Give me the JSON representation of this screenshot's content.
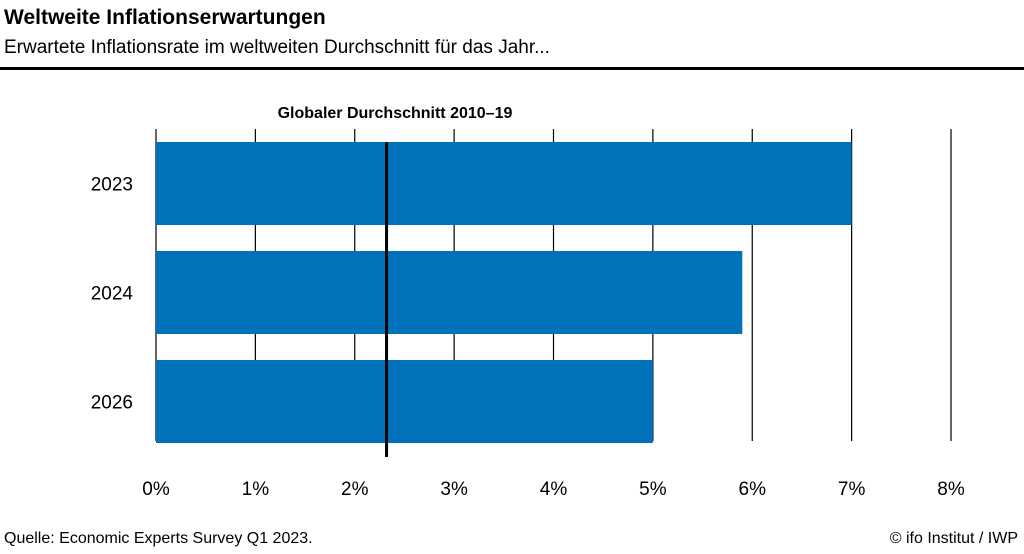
{
  "header": {
    "title": "Weltweite Inflationserwartungen",
    "subtitle": "Erwartete Inflationsrate im weltweiten Durchschnitt für das Jahr..."
  },
  "footer": {
    "source": "Quelle: Economic Experts Survey Q1 2023.",
    "credit": "© ifo Institut / IWP"
  },
  "chart_data": {
    "type": "bar",
    "orientation": "horizontal",
    "categories": [
      "2023",
      "2024",
      "2026"
    ],
    "values": [
      7.0,
      5.9,
      5.0
    ],
    "unit": "%",
    "xlim": [
      0,
      8
    ],
    "xticks": [
      0,
      1,
      2,
      3,
      4,
      5,
      6,
      7,
      8
    ],
    "xtick_labels": [
      "0%",
      "1%",
      "2%",
      "3%",
      "4%",
      "5%",
      "6%",
      "7%",
      "8%"
    ],
    "grid": "vertical",
    "bar_color": "#0072BC",
    "reference_line": {
      "label": "Globaler Durchschnitt 2010–19",
      "value": 2.32
    }
  }
}
